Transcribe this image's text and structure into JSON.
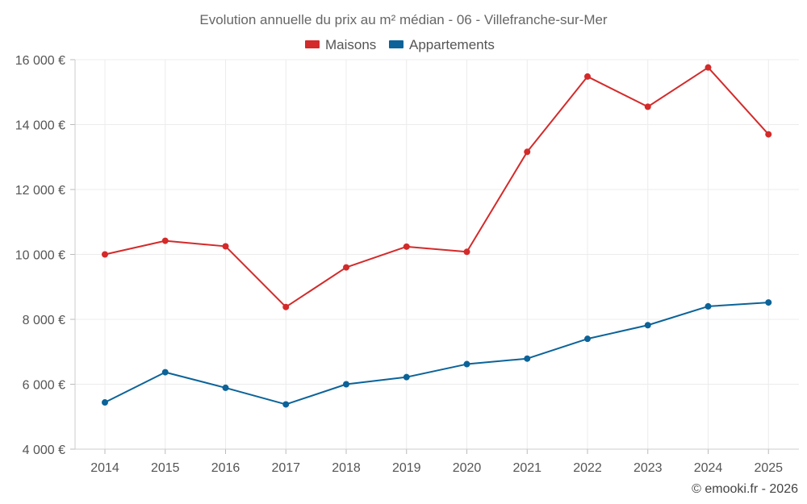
{
  "chart_data": {
    "type": "line",
    "title": "Evolution annuelle du prix au m² médian - 06 - Villefranche-sur-Mer",
    "xlabel": "",
    "ylabel": "",
    "categories": [
      "2014",
      "2015",
      "2016",
      "2017",
      "2018",
      "2019",
      "2020",
      "2021",
      "2022",
      "2023",
      "2024",
      "2025"
    ],
    "ylim": [
      4000,
      16000
    ],
    "yticks": [
      4000,
      6000,
      8000,
      10000,
      12000,
      14000,
      16000
    ],
    "ytick_labels": [
      "4 000 €",
      "6 000 €",
      "8 000 €",
      "10 000 €",
      "12 000 €",
      "14 000 €",
      "16 000 €"
    ],
    "grid": true,
    "legend_position": "top-center",
    "series": [
      {
        "name": "Maisons",
        "color": "#d42a2a",
        "values": [
          10000,
          10420,
          10250,
          8380,
          9600,
          10240,
          10080,
          13160,
          15480,
          14550,
          15760,
          13700
        ]
      },
      {
        "name": "Appartements",
        "color": "#0b6399",
        "values": [
          5440,
          6370,
          5890,
          5380,
          6000,
          6220,
          6620,
          6790,
          7400,
          7820,
          8400,
          8520
        ]
      }
    ],
    "credit": "© emooki.fr - 2026"
  }
}
